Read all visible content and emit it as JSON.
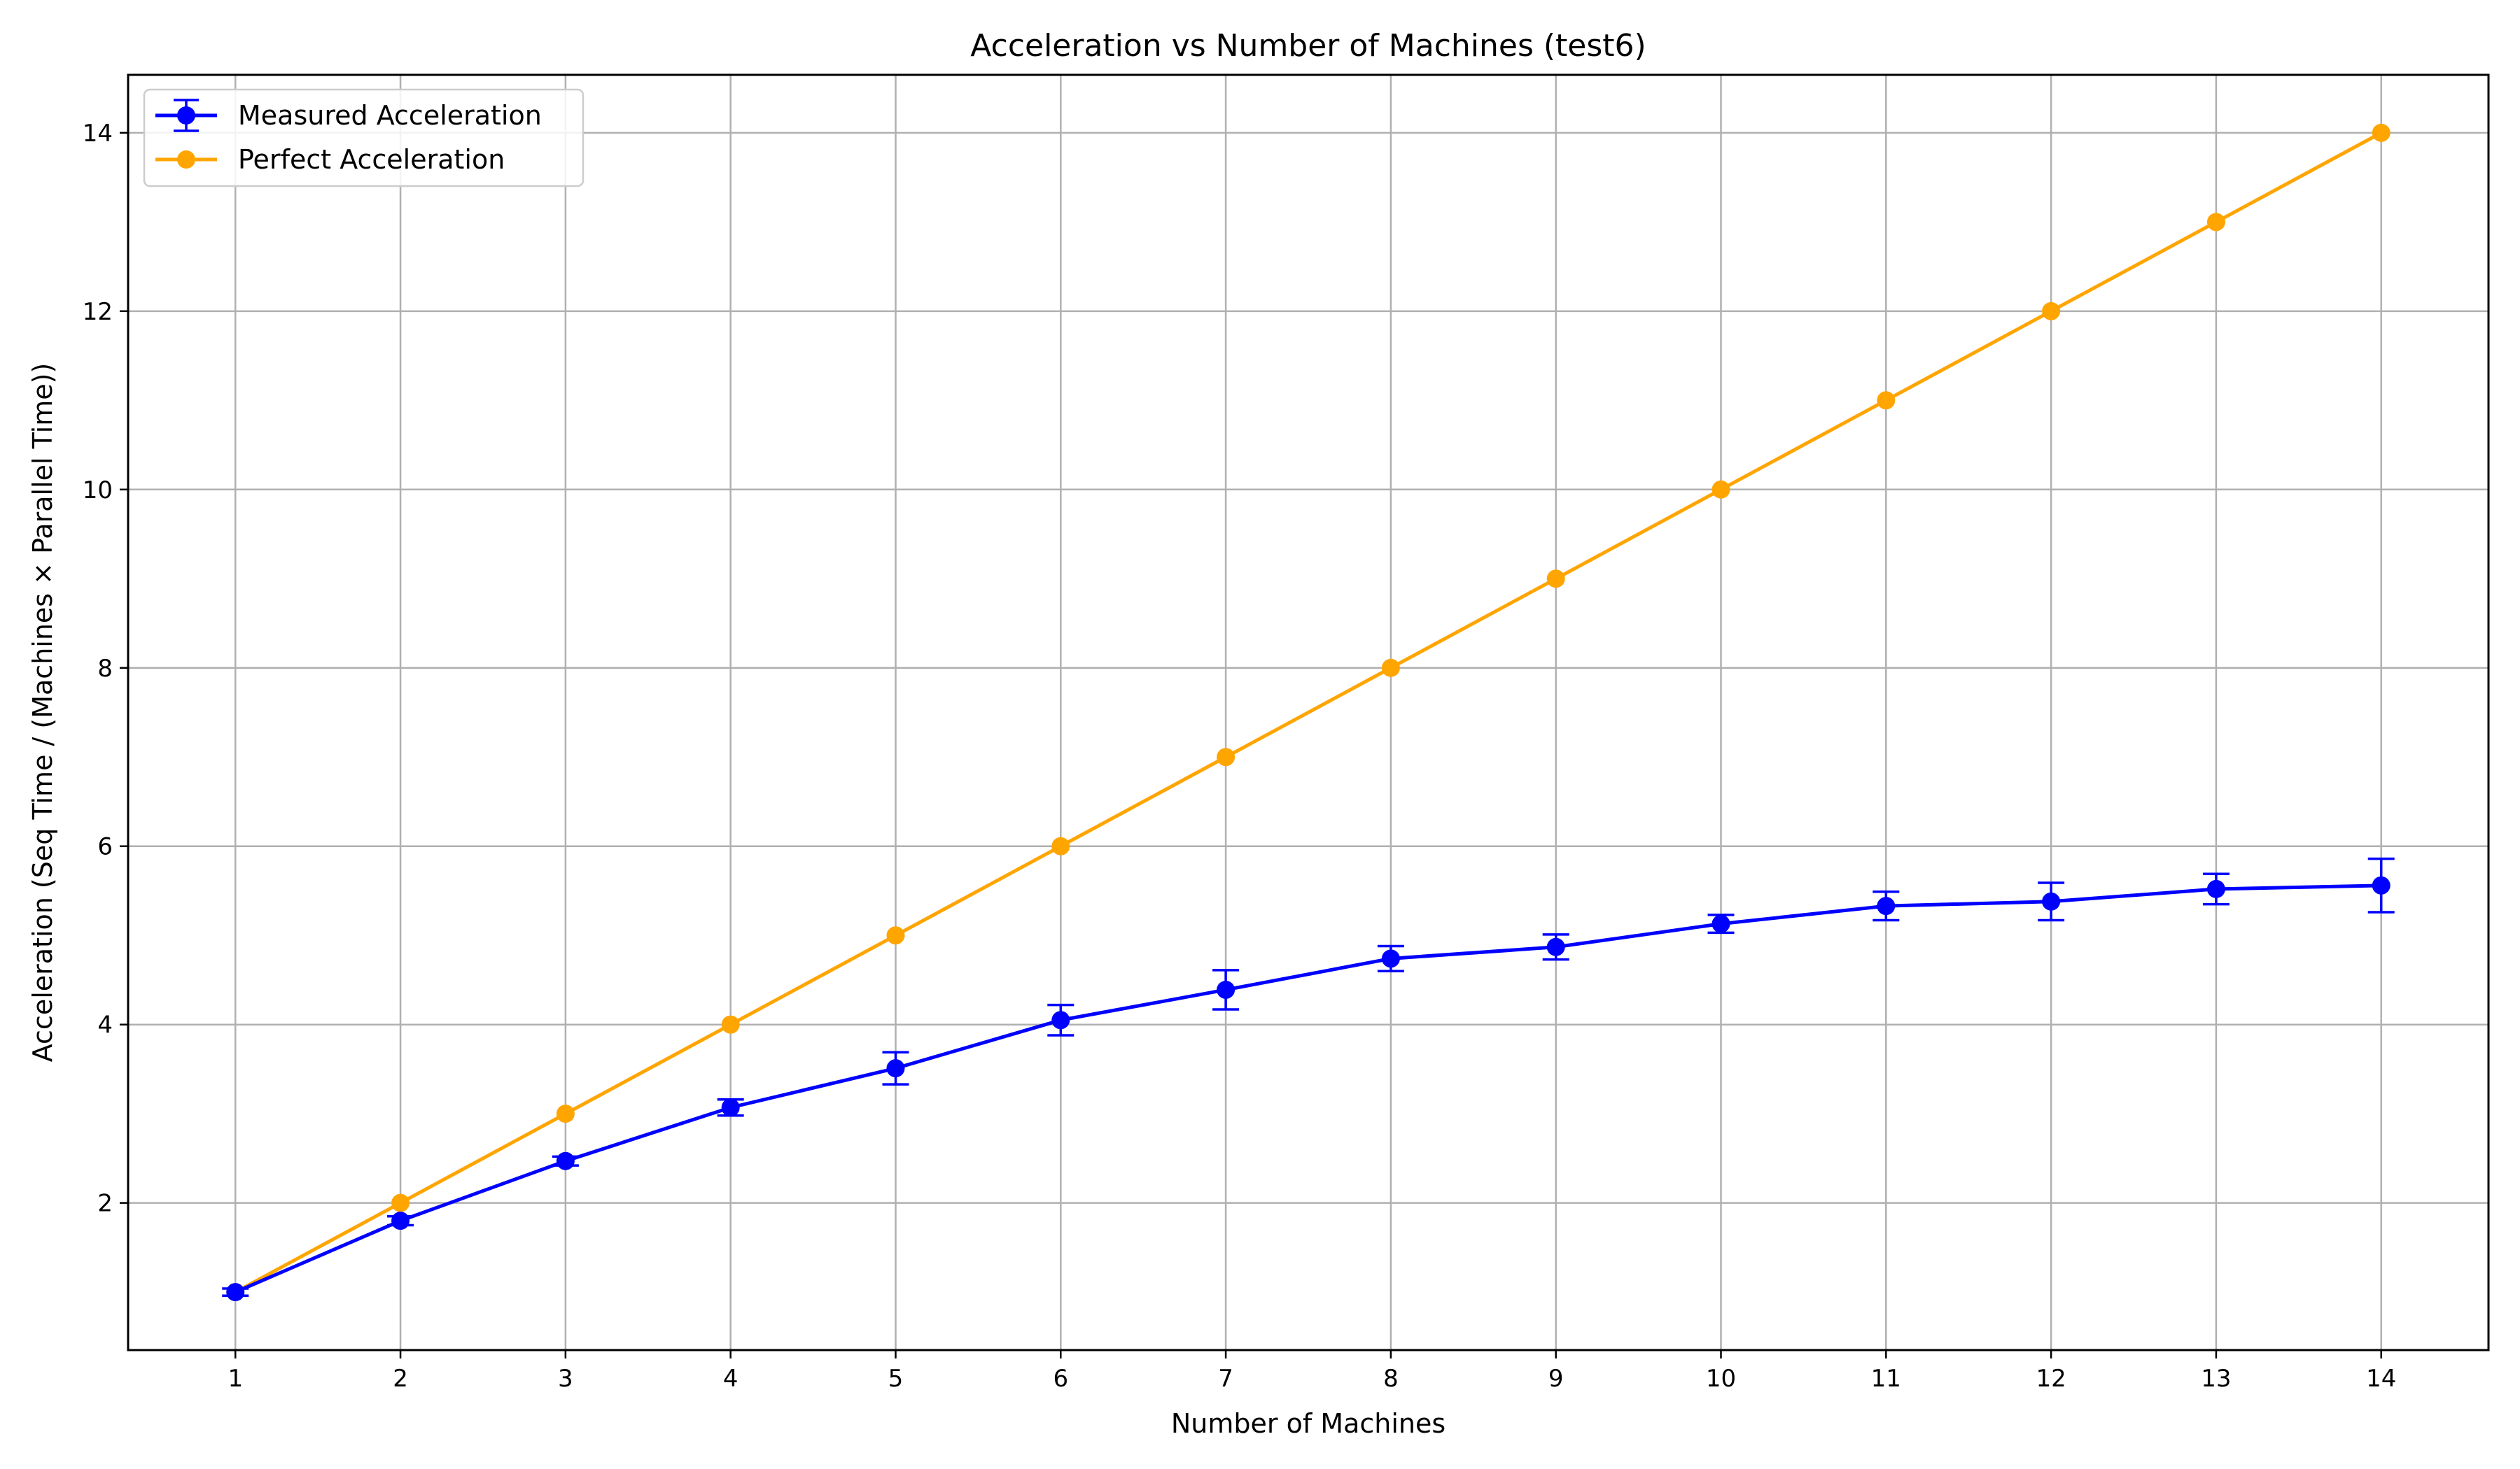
{
  "chart_data": {
    "type": "line",
    "title": "Acceleration vs Number of Machines (test6)",
    "xlabel": "Number of Machines",
    "ylabel": "Acceleration (Seq Time / (Machines × Parallel Time))",
    "x": [
      1,
      2,
      3,
      4,
      5,
      6,
      7,
      8,
      9,
      10,
      11,
      12,
      13,
      14
    ],
    "xlim": [
      0.35,
      14.65
    ],
    "ylim": [
      0.35,
      14.65
    ],
    "xticks": [
      1,
      2,
      3,
      4,
      5,
      6,
      7,
      8,
      9,
      10,
      11,
      12,
      13,
      14
    ],
    "yticks": [
      2,
      4,
      6,
      8,
      10,
      12,
      14
    ],
    "grid": true,
    "legend_position": "top-left",
    "series": [
      {
        "name": "Measured Acceleration",
        "color": "#0000ff",
        "marker": "circle",
        "values": [
          1.0,
          1.8,
          2.47,
          3.07,
          3.51,
          4.05,
          4.39,
          4.74,
          4.87,
          5.13,
          5.33,
          5.38,
          5.52,
          5.56
        ],
        "errors": [
          0.04,
          0.05,
          0.05,
          0.09,
          0.18,
          0.17,
          0.22,
          0.14,
          0.14,
          0.1,
          0.16,
          0.21,
          0.17,
          0.3
        ]
      },
      {
        "name": "Perfect Acceleration",
        "color": "#ffa500",
        "marker": "circle",
        "values": [
          1,
          2,
          3,
          4,
          5,
          6,
          7,
          8,
          9,
          10,
          11,
          12,
          13,
          14
        ]
      }
    ]
  }
}
